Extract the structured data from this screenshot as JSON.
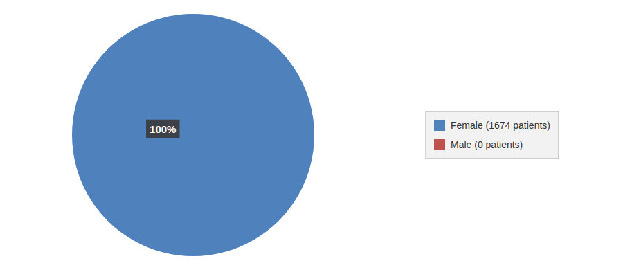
{
  "chart_data": {
    "type": "pie",
    "categories": [
      "Female (1674 patients)",
      "Male (0 patients)"
    ],
    "values": [
      100,
      0.0001
    ],
    "colors": [
      "#4f81bd",
      "#c0504d"
    ],
    "annotation": "100%",
    "legend": "right"
  }
}
